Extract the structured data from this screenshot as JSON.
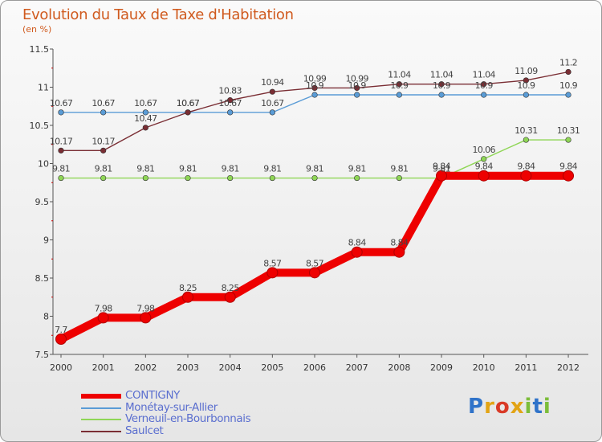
{
  "header": {
    "title": "Evolution du Taux de Taxe d'Habitation",
    "subtitle": "(en %)"
  },
  "logo": {
    "text": "Proxiti",
    "colors": [
      "#2f73c9",
      "#e2a415",
      "#d93a27",
      "#e2a415",
      "#7cbd3a",
      "#2f73c9",
      "#7cbd3a"
    ]
  },
  "chart_data": {
    "type": "line",
    "x": [
      "2000",
      "2001",
      "2002",
      "2003",
      "2004",
      "2005",
      "2006",
      "2007",
      "2008",
      "2009",
      "2010",
      "2011",
      "2012"
    ],
    "ylim": [
      7.5,
      11.5
    ],
    "yticks": [
      "7.5",
      "8",
      "8.5",
      "9",
      "9.5",
      "10",
      "10.5",
      "11",
      "11.5"
    ],
    "legend_position": "bottom",
    "grid": false,
    "series": [
      {
        "name": "CONTIGNY",
        "color": "#ee0000",
        "values": [
          7.7,
          7.98,
          7.98,
          8.25,
          8.25,
          8.57,
          8.57,
          8.84,
          8.84,
          9.84,
          9.84,
          9.84,
          9.84
        ],
        "labels": [
          "7.7",
          "7.98",
          "7.98",
          "8.25",
          "8.25",
          "8.57",
          "8.57",
          "8.84",
          "8.84",
          "9.84",
          "9.84",
          "9.84",
          "9.84"
        ]
      },
      {
        "name": "Monétay-sur-Allier",
        "color": "#5a9cd6",
        "values": [
          10.67,
          10.67,
          10.67,
          10.67,
          10.67,
          10.67,
          10.9,
          10.9,
          10.9,
          10.9,
          10.9,
          10.9,
          10.9
        ],
        "labels": [
          "10.67",
          "10.67",
          "10.67",
          "10.67",
          "10.67",
          "10.67",
          "10.9",
          "10.9",
          "10.9",
          "10.9",
          "10.9",
          "10.9",
          "10.9"
        ]
      },
      {
        "name": "Verneuil-en-Bourbonnais",
        "color": "#8fd656",
        "values": [
          9.81,
          9.81,
          9.81,
          9.81,
          9.81,
          9.81,
          9.81,
          9.81,
          9.81,
          9.81,
          10.06,
          10.31,
          10.31
        ],
        "labels": [
          "9.81",
          "9.81",
          "9.81",
          "9.81",
          "9.81",
          "9.81",
          "9.81",
          "9.81",
          "9.81",
          "9.81",
          "10.06",
          "10.31",
          "10.31"
        ]
      },
      {
        "name": "Saulcet",
        "color": "#7a2e34",
        "values": [
          10.17,
          10.17,
          10.47,
          10.67,
          10.83,
          10.94,
          10.99,
          10.99,
          11.04,
          11.04,
          11.04,
          11.09,
          11.2
        ],
        "labels": [
          "10.17",
          "10.17",
          "10.47",
          "10.67",
          "10.83",
          "10.94",
          "10.99",
          "10.99",
          "11.04",
          "11.04",
          "11.04",
          "11.09",
          "11.2"
        ]
      }
    ]
  }
}
